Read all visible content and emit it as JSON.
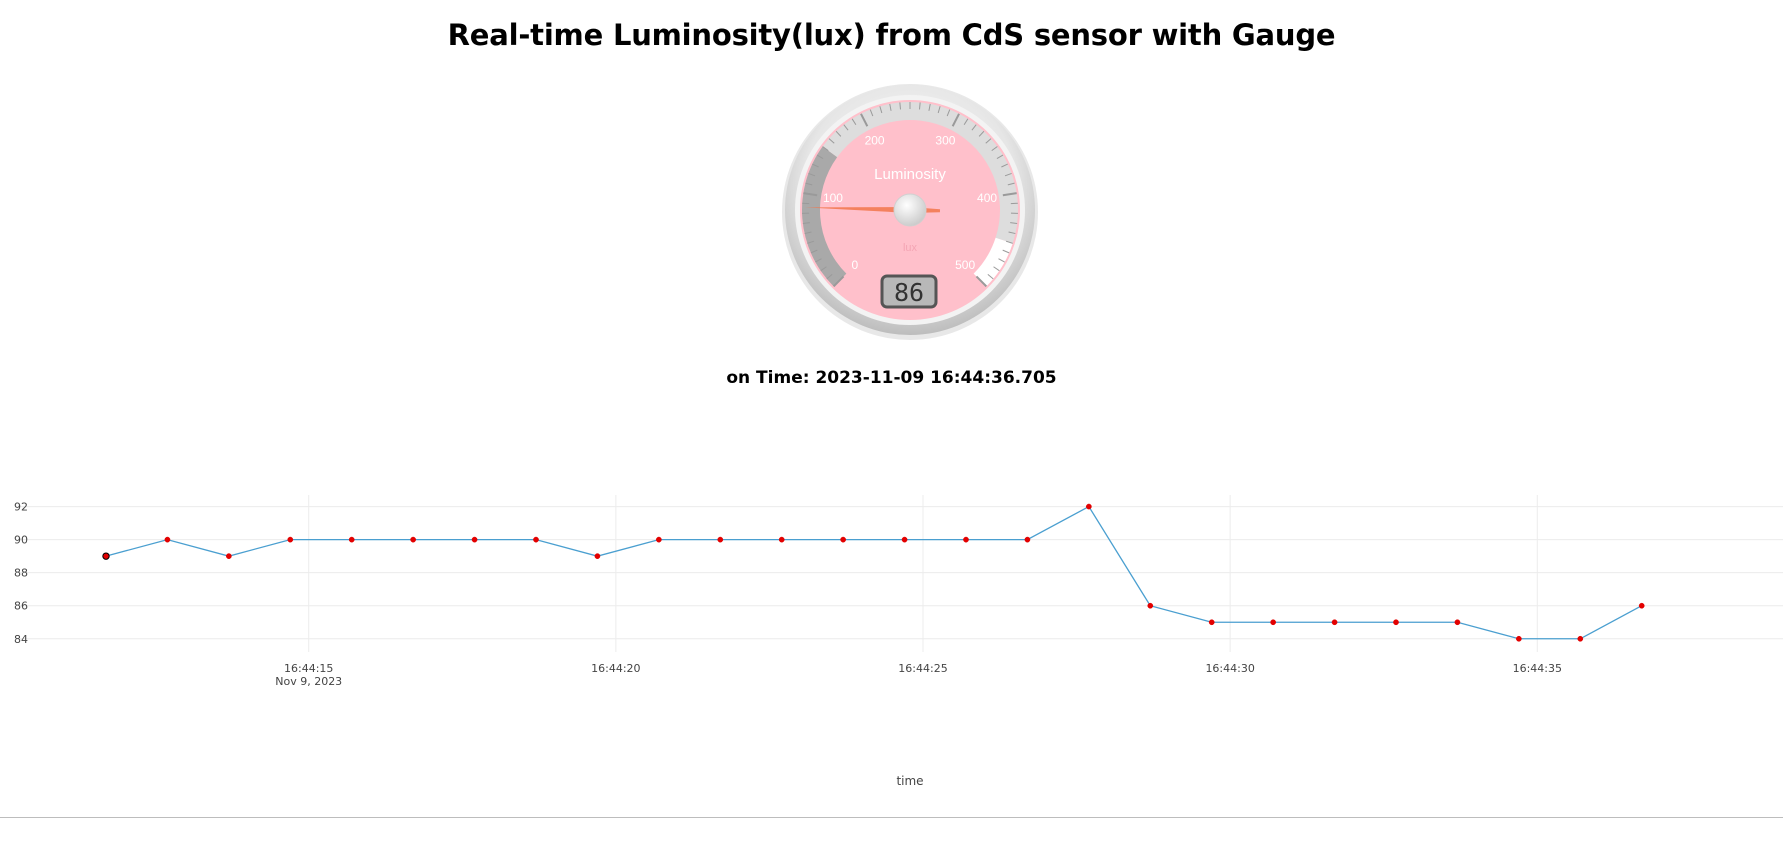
{
  "title": "Real-time Luminosity(lux) from CdS sensor with Gauge",
  "time_label": "on Time: 2023-11-09 16:44:36.705",
  "gauge": {
    "title": "Luminosity",
    "units": "lux",
    "value": 86,
    "value_text": "86",
    "min": 0,
    "max": 500,
    "major_ticks": [
      "0",
      "100",
      "200",
      "300",
      "400",
      "500"
    ],
    "highlights": [
      {
        "from": 0,
        "to": 150,
        "color": "#a9a9a9"
      },
      {
        "from": 150,
        "to": 450,
        "color": "#dddddd"
      },
      {
        "from": 450,
        "to": 500,
        "color": "#ffffff"
      }
    ],
    "plate_color": "#ffc0cb",
    "needle_color": "#f2764b"
  },
  "chart_data": {
    "type": "line",
    "xlabel": "time",
    "ylabel": "",
    "x_tick_labels": [
      "16:44:15",
      "16:44:20",
      "16:44:25",
      "16:44:30",
      "16:44:35"
    ],
    "x_tick_times": [
      "16:44:15",
      "16:44:20",
      "16:44:25",
      "16:44:30",
      "16:44:35"
    ],
    "x_tick_date": "Nov 9, 2023",
    "y_ticks": [
      84,
      86,
      88,
      90,
      92
    ],
    "xlim": [
      "16:44:10.3",
      "16:44:39.0"
    ],
    "ylim": [
      83.2,
      92.7
    ],
    "grid": true,
    "series": [
      {
        "line_color": "#4a9fd0",
        "marker_color": "#e30000",
        "x": [
          "16:44:11.70",
          "16:44:12.70",
          "16:44:13.70",
          "16:44:14.70",
          "16:44:15.70",
          "16:44:16.70",
          "16:44:17.70",
          "16:44:18.70",
          "16:44:19.70",
          "16:44:20.70",
          "16:44:21.70",
          "16:44:22.70",
          "16:44:23.70",
          "16:44:24.70",
          "16:44:25.70",
          "16:44:26.70",
          "16:44:27.70",
          "16:44:28.70",
          "16:44:29.70",
          "16:44:30.70",
          "16:44:31.70",
          "16:44:32.70",
          "16:44:33.70",
          "16:44:34.70",
          "16:44:35.70",
          "16:44:36.70"
        ],
        "y": [
          89,
          90,
          89,
          90,
          90,
          90,
          90,
          90,
          89,
          90,
          90,
          90,
          90,
          90,
          90,
          90,
          92,
          86,
          85,
          85,
          85,
          85,
          85,
          84,
          84,
          86
        ]
      }
    ]
  }
}
